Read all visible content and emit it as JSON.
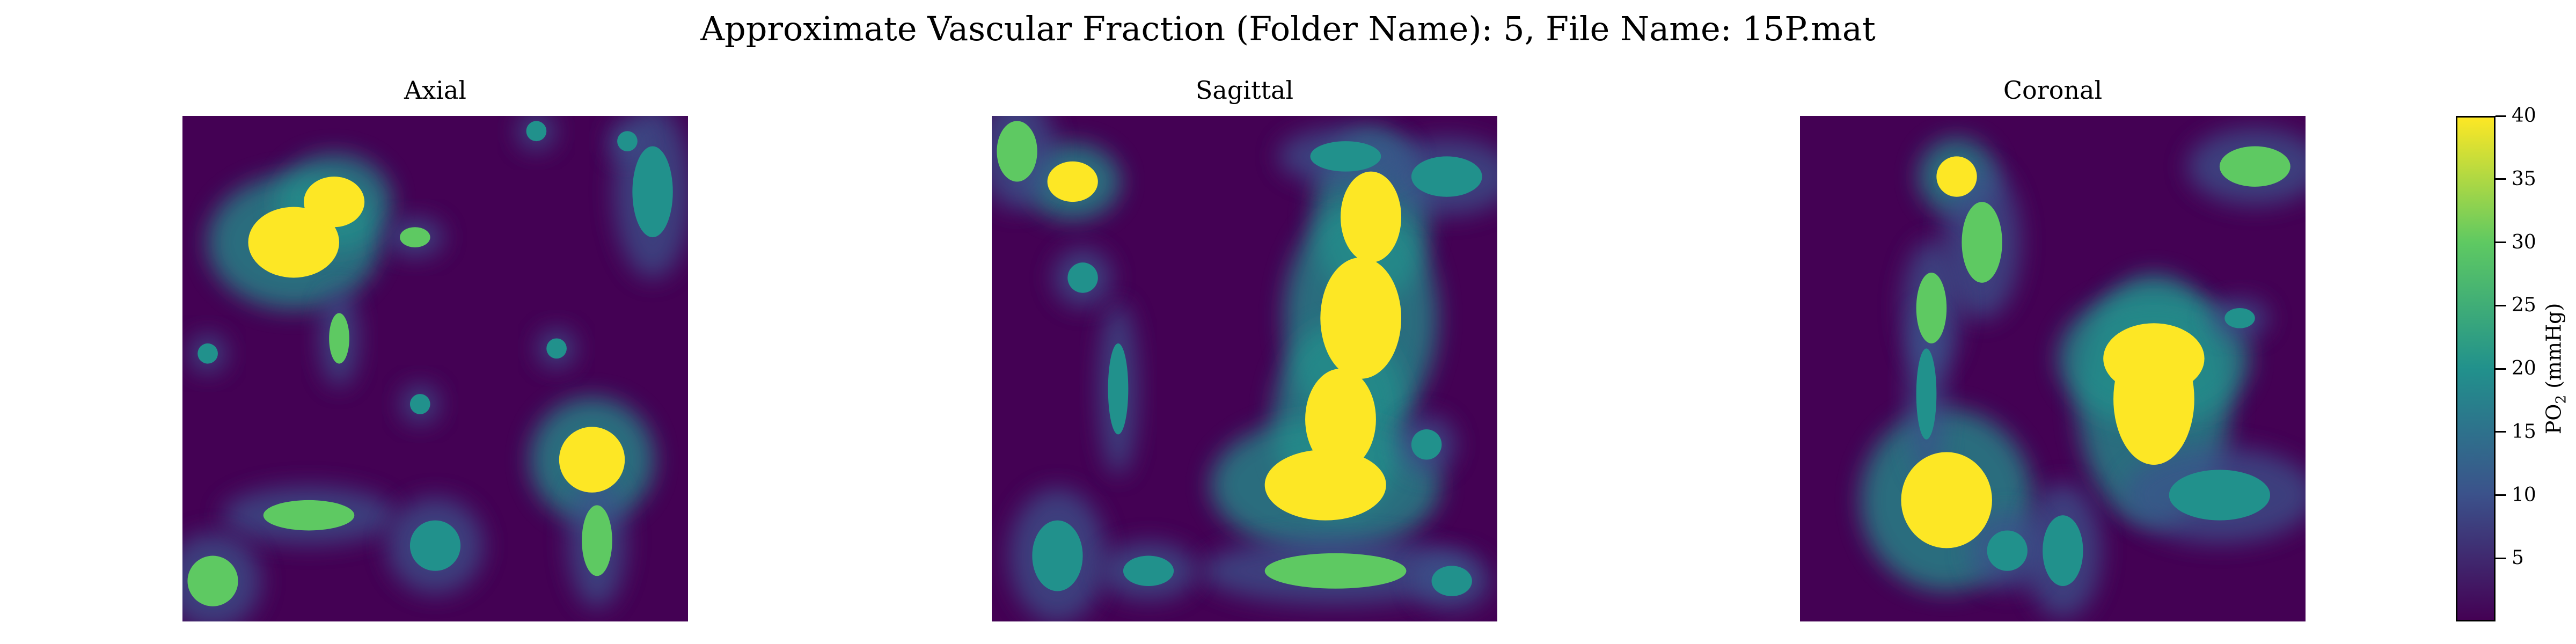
{
  "figure_title": "Approximate Vascular Fraction (Folder Name): 5, File Name: 15P.mat",
  "colormap": [
    "#440154",
    "#3b528b",
    "#21918c",
    "#5ec962",
    "#fde725"
  ],
  "chart_data": [
    {
      "type": "heatmap",
      "title": "Axial",
      "value_range": [
        0,
        40
      ],
      "hotspots": [
        {
          "x": 0.22,
          "y": 0.25,
          "rx": 0.09,
          "ry": 0.07,
          "v": 40
        },
        {
          "x": 0.3,
          "y": 0.17,
          "rx": 0.06,
          "ry": 0.05,
          "v": 40
        },
        {
          "x": 0.81,
          "y": 0.68,
          "rx": 0.065,
          "ry": 0.065,
          "v": 40
        },
        {
          "x": 0.82,
          "y": 0.84,
          "rx": 0.03,
          "ry": 0.07,
          "v": 30
        },
        {
          "x": 0.25,
          "y": 0.79,
          "rx": 0.09,
          "ry": 0.03,
          "v": 34
        },
        {
          "x": 0.06,
          "y": 0.92,
          "rx": 0.05,
          "ry": 0.05,
          "v": 32
        },
        {
          "x": 0.31,
          "y": 0.44,
          "rx": 0.02,
          "ry": 0.05,
          "v": 28
        },
        {
          "x": 0.46,
          "y": 0.24,
          "rx": 0.03,
          "ry": 0.02,
          "v": 26
        },
        {
          "x": 0.93,
          "y": 0.15,
          "rx": 0.04,
          "ry": 0.09,
          "v": 22
        },
        {
          "x": 0.5,
          "y": 0.85,
          "rx": 0.05,
          "ry": 0.05,
          "v": 22
        },
        {
          "x": 0.05,
          "y": 0.47,
          "rx": 0.02,
          "ry": 0.02,
          "v": 22
        },
        {
          "x": 0.74,
          "y": 0.46,
          "rx": 0.02,
          "ry": 0.02,
          "v": 20
        },
        {
          "x": 0.47,
          "y": 0.57,
          "rx": 0.02,
          "ry": 0.02,
          "v": 20
        },
        {
          "x": 0.7,
          "y": 0.03,
          "rx": 0.02,
          "ry": 0.02,
          "v": 22
        },
        {
          "x": 0.88,
          "y": 0.05,
          "rx": 0.02,
          "ry": 0.02,
          "v": 24
        }
      ]
    },
    {
      "type": "heatmap",
      "title": "Sagittal",
      "value_range": [
        0,
        40
      ],
      "hotspots": [
        {
          "x": 0.75,
          "y": 0.2,
          "rx": 0.06,
          "ry": 0.09,
          "v": 40
        },
        {
          "x": 0.73,
          "y": 0.4,
          "rx": 0.08,
          "ry": 0.12,
          "v": 40
        },
        {
          "x": 0.69,
          "y": 0.6,
          "rx": 0.07,
          "ry": 0.1,
          "v": 40
        },
        {
          "x": 0.66,
          "y": 0.73,
          "rx": 0.12,
          "ry": 0.07,
          "v": 40
        },
        {
          "x": 0.16,
          "y": 0.13,
          "rx": 0.05,
          "ry": 0.04,
          "v": 40
        },
        {
          "x": 0.05,
          "y": 0.07,
          "rx": 0.04,
          "ry": 0.06,
          "v": 34
        },
        {
          "x": 0.68,
          "y": 0.9,
          "rx": 0.14,
          "ry": 0.035,
          "v": 26
        },
        {
          "x": 0.9,
          "y": 0.12,
          "rx": 0.07,
          "ry": 0.04,
          "v": 24
        },
        {
          "x": 0.7,
          "y": 0.08,
          "rx": 0.07,
          "ry": 0.03,
          "v": 24
        },
        {
          "x": 0.13,
          "y": 0.87,
          "rx": 0.05,
          "ry": 0.07,
          "v": 24
        },
        {
          "x": 0.31,
          "y": 0.9,
          "rx": 0.05,
          "ry": 0.03,
          "v": 24
        },
        {
          "x": 0.91,
          "y": 0.92,
          "rx": 0.04,
          "ry": 0.03,
          "v": 22
        },
        {
          "x": 0.25,
          "y": 0.54,
          "rx": 0.02,
          "ry": 0.09,
          "v": 18
        },
        {
          "x": 0.18,
          "y": 0.32,
          "rx": 0.03,
          "ry": 0.03,
          "v": 22
        },
        {
          "x": 0.86,
          "y": 0.65,
          "rx": 0.03,
          "ry": 0.03,
          "v": 24
        }
      ]
    },
    {
      "type": "heatmap",
      "title": "Coronal",
      "value_range": [
        0,
        40
      ],
      "hotspots": [
        {
          "x": 0.29,
          "y": 0.76,
          "rx": 0.09,
          "ry": 0.095,
          "v": 40
        },
        {
          "x": 0.7,
          "y": 0.56,
          "rx": 0.08,
          "ry": 0.13,
          "v": 40
        },
        {
          "x": 0.7,
          "y": 0.48,
          "rx": 0.1,
          "ry": 0.07,
          "v": 36
        },
        {
          "x": 0.31,
          "y": 0.12,
          "rx": 0.04,
          "ry": 0.04,
          "v": 38
        },
        {
          "x": 0.36,
          "y": 0.25,
          "rx": 0.04,
          "ry": 0.08,
          "v": 30
        },
        {
          "x": 0.26,
          "y": 0.38,
          "rx": 0.03,
          "ry": 0.07,
          "v": 26
        },
        {
          "x": 0.25,
          "y": 0.55,
          "rx": 0.02,
          "ry": 0.09,
          "v": 18
        },
        {
          "x": 0.52,
          "y": 0.86,
          "rx": 0.04,
          "ry": 0.07,
          "v": 24
        },
        {
          "x": 0.9,
          "y": 0.1,
          "rx": 0.07,
          "ry": 0.04,
          "v": 26
        },
        {
          "x": 0.83,
          "y": 0.75,
          "rx": 0.1,
          "ry": 0.05,
          "v": 20
        },
        {
          "x": 0.41,
          "y": 0.86,
          "rx": 0.04,
          "ry": 0.04,
          "v": 24
        },
        {
          "x": 0.87,
          "y": 0.4,
          "rx": 0.03,
          "ry": 0.02,
          "v": 22
        }
      ]
    }
  ],
  "colorbar": {
    "label_main": "PO",
    "label_sub": "2",
    "label_unit": " (mmHg)",
    "range": [
      0,
      40
    ],
    "ticks": [
      {
        "value": 5,
        "label": "5"
      },
      {
        "value": 10,
        "label": "10"
      },
      {
        "value": 15,
        "label": "15"
      },
      {
        "value": 20,
        "label": "20"
      },
      {
        "value": 25,
        "label": "25"
      },
      {
        "value": 30,
        "label": "30"
      },
      {
        "value": 35,
        "label": "35"
      },
      {
        "value": 40,
        "label": "40"
      }
    ]
  }
}
